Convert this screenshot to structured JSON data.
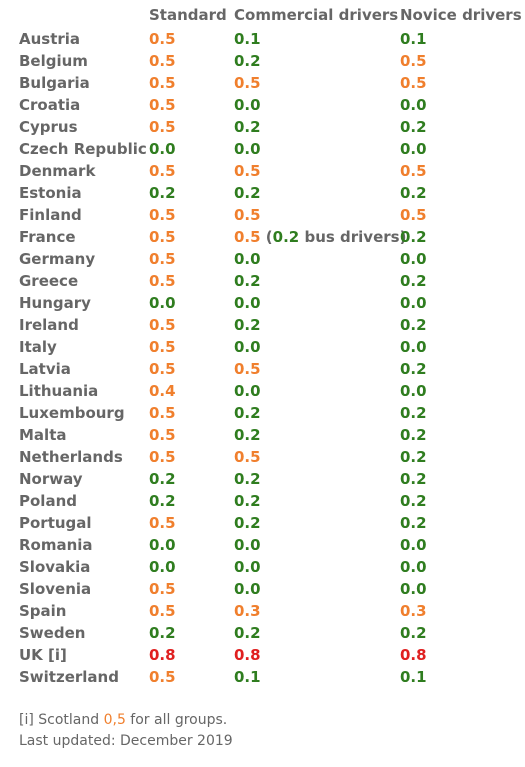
{
  "headers": {
    "standard": "Standard",
    "commercial": "Commercial drivers",
    "novice": "Novice drivers"
  },
  "colors": {
    "low": "#2f7d1f",
    "mid": "#f07f2d",
    "high": "#e02020",
    "text": "#666666"
  },
  "rows": [
    {
      "country": "Austria",
      "standard": "0.5",
      "commercial": "0.1",
      "novice": "0.1"
    },
    {
      "country": "Belgium",
      "standard": "0.5",
      "commercial": "0.2",
      "novice": "0.5"
    },
    {
      "country": "Bulgaria",
      "standard": "0.5",
      "commercial": "0.5",
      "novice": "0.5"
    },
    {
      "country": "Croatia",
      "standard": "0.5",
      "commercial": "0.0",
      "novice": "0.0"
    },
    {
      "country": "Cyprus",
      "standard": "0.5",
      "commercial": "0.2",
      "novice": "0.2"
    },
    {
      "country": "Czech Republic",
      "standard": "0.0",
      "commercial": "0.0",
      "novice": "0.0"
    },
    {
      "country": "Denmark",
      "standard": "0.5",
      "commercial": "0.5",
      "novice": "0.5"
    },
    {
      "country": "Estonia",
      "standard": "0.2",
      "commercial": "0.2",
      "novice": "0.2"
    },
    {
      "country": "Finland",
      "standard": "0.5",
      "commercial": "0.5",
      "novice": "0.5"
    },
    {
      "country": "France",
      "standard": "0.5",
      "commercial": "0.5",
      "commercial_note_open": " (",
      "commercial_note_value": "0.2",
      "commercial_note_text": " bus drivers)",
      "novice": "0.2"
    },
    {
      "country": "Germany",
      "standard": "0.5",
      "commercial": "0.0",
      "novice": "0.0"
    },
    {
      "country": "Greece",
      "standard": "0.5",
      "commercial": "0.2",
      "novice": "0.2"
    },
    {
      "country": "Hungary",
      "standard": "0.0",
      "commercial": "0.0",
      "novice": "0.0"
    },
    {
      "country": "Ireland",
      "standard": "0.5",
      "commercial": "0.2",
      "novice": "0.2"
    },
    {
      "country": "Italy",
      "standard": "0.5",
      "commercial": "0.0",
      "novice": "0.0"
    },
    {
      "country": "Latvia",
      "standard": "0.5",
      "commercial": "0.5",
      "novice": "0.2"
    },
    {
      "country": "Lithuania",
      "standard": "0.4",
      "commercial": "0.0",
      "novice": "0.0"
    },
    {
      "country": "Luxembourg",
      "standard": "0.5",
      "commercial": "0.2",
      "novice": "0.2"
    },
    {
      "country": "Malta",
      "standard": "0.5",
      "commercial": "0.2",
      "novice": "0.2"
    },
    {
      "country": "Netherlands",
      "standard": "0.5",
      "commercial": "0.5",
      "novice": "0.2"
    },
    {
      "country": "Norway",
      "standard": "0.2",
      "commercial": "0.2",
      "novice": "0.2"
    },
    {
      "country": "Poland",
      "standard": "0.2",
      "commercial": "0.2",
      "novice": "0.2"
    },
    {
      "country": "Portugal",
      "standard": "0.5",
      "commercial": "0.2",
      "novice": "0.2"
    },
    {
      "country": "Romania",
      "standard": "0.0",
      "commercial": "0.0",
      "novice": "0.0"
    },
    {
      "country": "Slovakia",
      "standard": "0.0",
      "commercial": "0.0",
      "novice": "0.0"
    },
    {
      "country": "Slovenia",
      "standard": "0.5",
      "commercial": "0.0",
      "novice": "0.0"
    },
    {
      "country": "Spain",
      "standard": "0.5",
      "commercial": "0.3",
      "novice": "0.3"
    },
    {
      "country": "Sweden",
      "standard": "0.2",
      "commercial": "0.2",
      "novice": "0.2"
    },
    {
      "country": "UK [i]",
      "standard": "0.8",
      "commercial": "0.8",
      "novice": "0.8"
    },
    {
      "country": "Switzerland",
      "standard": "0.5",
      "commercial": "0.1",
      "novice": "0.1"
    }
  ],
  "footnote": {
    "line1_prefix": "[i] Scotland ",
    "line1_value": "0,5",
    "line1_suffix": " for all groups.",
    "line2": "Last updated: December 2019"
  }
}
